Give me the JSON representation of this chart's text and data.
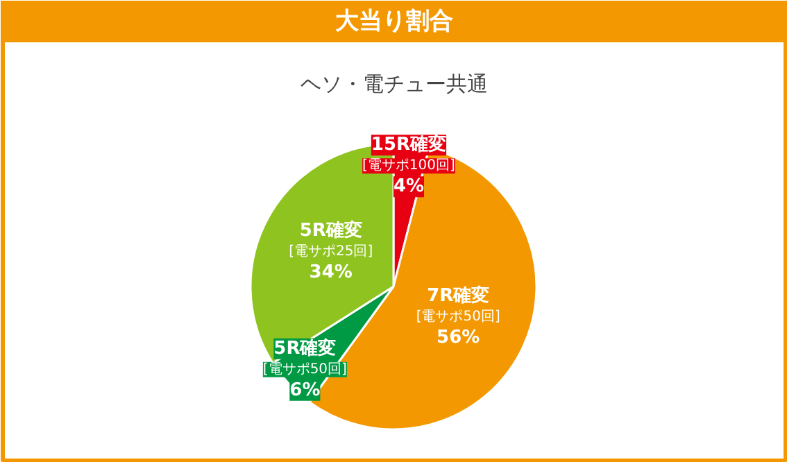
{
  "chart_data": {
    "type": "pie",
    "title": "大当り割合",
    "subtitle": "ヘソ・電チュー共通",
    "categories": [
      "15R確変\n[電サポ100回]",
      "7R確変\n[電サポ50回]",
      "5R確変\n[電サポ50回]",
      "5R確変\n[電サポ25回]"
    ],
    "values": [
      4,
      56,
      6,
      34
    ],
    "value_labels": [
      "4%",
      "56%",
      "6%",
      "34%"
    ],
    "colors": [
      "#e60012",
      "#f39800",
      "#009944",
      "#8fc31f"
    ]
  }
}
